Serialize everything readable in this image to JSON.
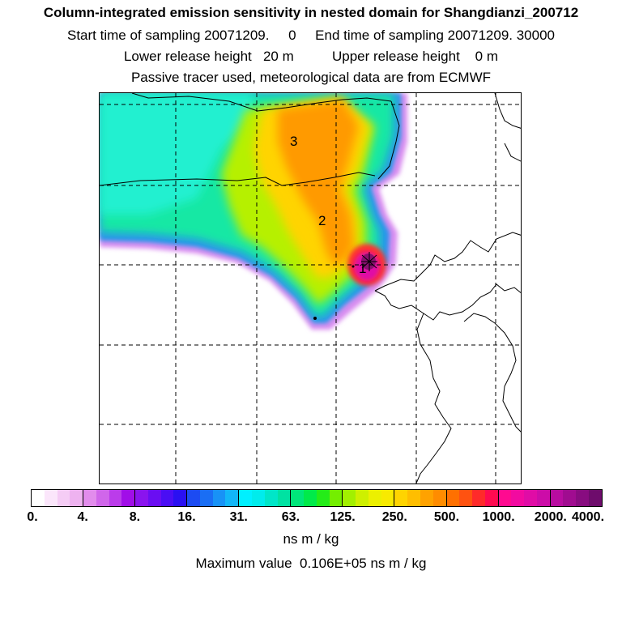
{
  "title": "Column-integrated emission sensitivity in nested domain for Shangdianzi_200712",
  "subtitle_line1": "Start time of sampling 20071209.     0     End time of sampling 20071209. 30000",
  "subtitle_line2": "Lower release height   20 m          Upper release height    0 m",
  "subtitle_line3": "Passive tracer used, meteorological data are from ECMWF",
  "map": {
    "region_labels": [
      "1",
      "2",
      "3"
    ],
    "colors": {
      "plume_core": "#8a0f6f",
      "coastline": "#000000",
      "gridline": "#000000"
    }
  },
  "colorbar": {
    "tick_labels": [
      "0.",
      "4.",
      "8.",
      "16.",
      "31.",
      "63.",
      "125.",
      "250.",
      "500.",
      "1000.",
      "2000.",
      "4000."
    ],
    "colors": [
      "#ffffff",
      "#fbe6fb",
      "#f5ccf5",
      "#eeb2f0",
      "#e28cec",
      "#d066ea",
      "#bb3cea",
      "#a10ee8",
      "#8a14ee",
      "#6a0ef2",
      "#4a0ef4",
      "#2a10f2",
      "#1c4bf2",
      "#1a6ef4",
      "#1892f6",
      "#12b6f8",
      "#00f0ff",
      "#00ecec",
      "#00e6c8",
      "#00e2a2",
      "#00e67a",
      "#00ea4a",
      "#24ec18",
      "#74ee00",
      "#a2f000",
      "#cef000",
      "#ecf000",
      "#f8ea00",
      "#ffd400",
      "#ffbe00",
      "#ffa200",
      "#ff8c00",
      "#ff7000",
      "#ff5210",
      "#ff2a2a",
      "#ff0a50",
      "#ff0a90",
      "#f20aa0",
      "#e00ca6",
      "#cc0ca8",
      "#b80ca0",
      "#a00c90",
      "#880c80",
      "#6e0c6c"
    ]
  },
  "units": "ns m / kg",
  "maximum_value": "Maximum value  0.106E+05 ns m / kg"
}
